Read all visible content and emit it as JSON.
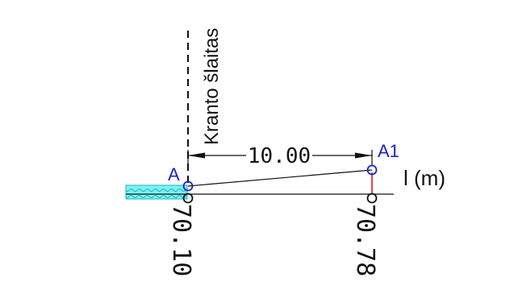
{
  "drawing": {
    "bank_label": "Kranto šlaitas",
    "distance_label": "10.00",
    "axis_label": "l (m)",
    "points": [
      {
        "name": "A",
        "elevation": "70.10"
      },
      {
        "name": "A1",
        "elevation": "70.78"
      }
    ]
  },
  "colors": {
    "line": "#111111",
    "point_marker": "#1a24c8",
    "point_label": "#1a24c8",
    "water_fill": "#7ff0ef",
    "water_hatch": "#19b6c9",
    "vertical_offset": "#d40000"
  }
}
